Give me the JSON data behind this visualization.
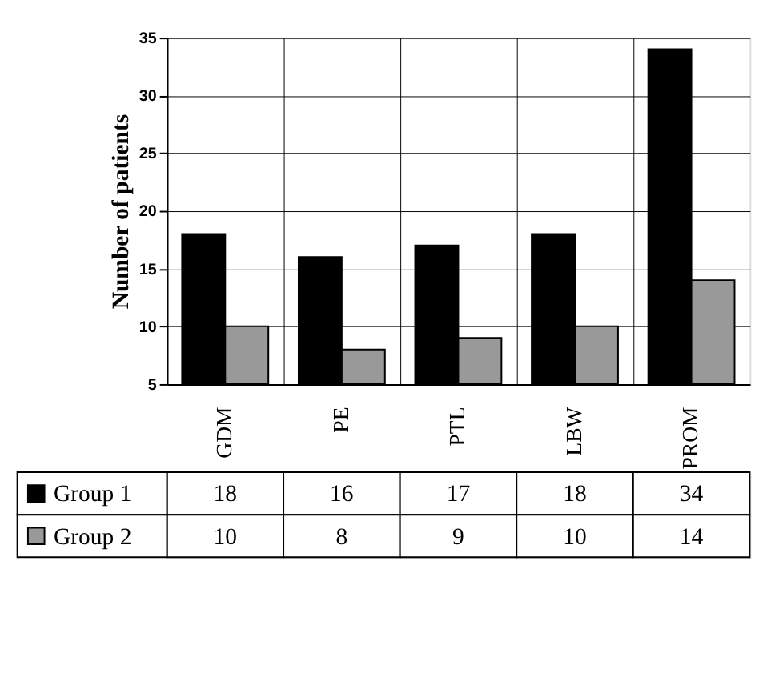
{
  "chart_data": {
    "type": "bar",
    "ylabel": "Number of patients",
    "categories": [
      "GDM",
      "PE",
      "PTL",
      "LBW",
      "PROM"
    ],
    "series": [
      {
        "name": "Group 1",
        "color": "#000000",
        "values": [
          18,
          16,
          17,
          18,
          34
        ]
      },
      {
        "name": "Group 2",
        "color": "#999999",
        "values": [
          10,
          8,
          9,
          10,
          14
        ]
      }
    ],
    "ylim": [
      5,
      35
    ],
    "yticks": [
      5,
      10,
      15,
      20,
      25,
      30,
      35
    ],
    "grid": true,
    "data_labels": true,
    "legend": "bottom"
  }
}
